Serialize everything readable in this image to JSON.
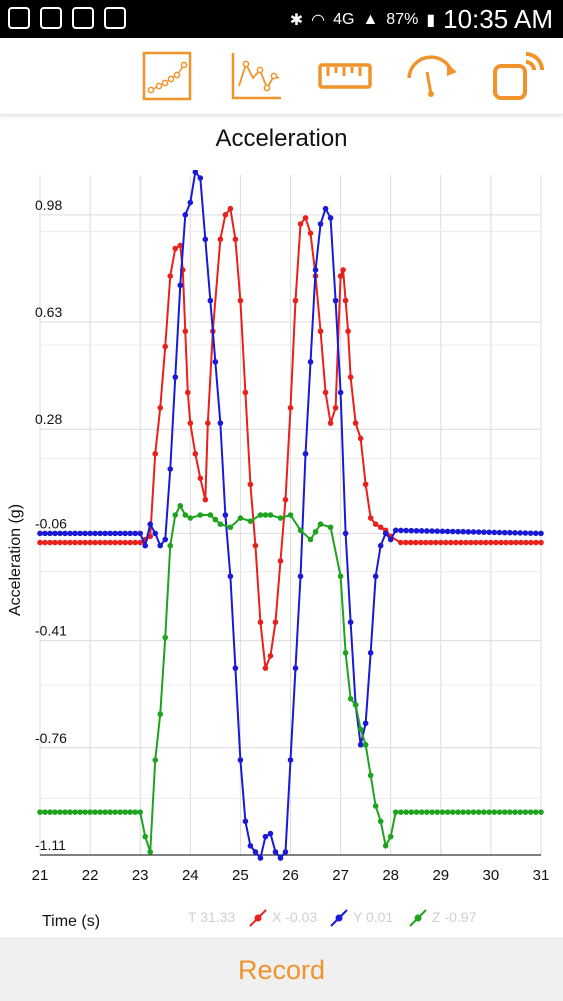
{
  "status_bar": {
    "battery_percent": "87%",
    "network": "4G",
    "clock": "10:35 AM",
    "icons": [
      "gallery-icon",
      "message-icon",
      "voicemail-icon",
      "clipboard-icon",
      "bluetooth-icon",
      "wifi-icon",
      "signal-icon",
      "battery-icon"
    ]
  },
  "toolbar": {
    "buttons": [
      {
        "name": "scatter-chart-icon"
      },
      {
        "name": "line-chart-icon"
      },
      {
        "name": "ruler-icon"
      },
      {
        "name": "gauge-icon"
      },
      {
        "name": "rotate-device-icon"
      }
    ],
    "accent_color": "#f0932b"
  },
  "title": "Acceleration",
  "chart_data": {
    "type": "line",
    "title": "Acceleration",
    "xlabel": "Time (s)",
    "ylabel": "Acceleration (g)",
    "xlim": [
      21,
      31
    ],
    "ylim": [
      -1.11,
      1.11
    ],
    "x_ticks": [
      "21",
      "22",
      "23",
      "24",
      "25",
      "26",
      "27",
      "28",
      "29",
      "30",
      "31"
    ],
    "y_ticks": [
      "0.98",
      "0.63",
      "0.28",
      "-0.06",
      "-0.41",
      "-0.76",
      "-1.11"
    ],
    "y_tick_values": [
      0.98,
      0.63,
      0.28,
      -0.06,
      -0.41,
      -0.76,
      -1.11
    ],
    "grid": true,
    "legend_placement": "bottom",
    "series": [
      {
        "name": "X",
        "color": "#e8211c",
        "points": [
          [
            21.0,
            -0.09
          ],
          [
            23.0,
            -0.09
          ],
          [
            23.1,
            -0.08
          ],
          [
            23.2,
            -0.07
          ],
          [
            23.3,
            0.2
          ],
          [
            23.4,
            0.35
          ],
          [
            23.5,
            0.55
          ],
          [
            23.6,
            0.78
          ],
          [
            23.7,
            0.87
          ],
          [
            23.8,
            0.88
          ],
          [
            23.85,
            0.8
          ],
          [
            23.9,
            0.6
          ],
          [
            23.95,
            0.4
          ],
          [
            24.0,
            0.3
          ],
          [
            24.1,
            0.2
          ],
          [
            24.2,
            0.12
          ],
          [
            24.3,
            0.05
          ],
          [
            24.35,
            0.3
          ],
          [
            24.45,
            0.6
          ],
          [
            24.6,
            0.9
          ],
          [
            24.7,
            0.98
          ],
          [
            24.8,
            1.0
          ],
          [
            24.9,
            0.9
          ],
          [
            25.0,
            0.7
          ],
          [
            25.1,
            0.4
          ],
          [
            25.2,
            0.1
          ],
          [
            25.3,
            -0.1
          ],
          [
            25.4,
            -0.35
          ],
          [
            25.5,
            -0.5
          ],
          [
            25.6,
            -0.46
          ],
          [
            25.7,
            -0.35
          ],
          [
            25.8,
            -0.15
          ],
          [
            25.9,
            0.05
          ],
          [
            26.0,
            0.35
          ],
          [
            26.1,
            0.7
          ],
          [
            26.2,
            0.95
          ],
          [
            26.3,
            0.97
          ],
          [
            26.4,
            0.92
          ],
          [
            26.5,
            0.78
          ],
          [
            26.6,
            0.6
          ],
          [
            26.7,
            0.4
          ],
          [
            26.8,
            0.3
          ],
          [
            26.9,
            0.35
          ],
          [
            27.0,
            0.78
          ],
          [
            27.05,
            0.8
          ],
          [
            27.1,
            0.7
          ],
          [
            27.15,
            0.6
          ],
          [
            27.2,
            0.45
          ],
          [
            27.3,
            0.3
          ],
          [
            27.4,
            0.25
          ],
          [
            27.5,
            0.1
          ],
          [
            27.6,
            -0.01
          ],
          [
            27.7,
            -0.03
          ],
          [
            27.8,
            -0.04
          ],
          [
            27.9,
            -0.05
          ],
          [
            28.0,
            -0.07
          ],
          [
            28.2,
            -0.09
          ],
          [
            31.0,
            -0.09
          ]
        ]
      },
      {
        "name": "Y",
        "color": "#1a1ad6",
        "points": [
          [
            21.0,
            -0.06
          ],
          [
            23.0,
            -0.06
          ],
          [
            23.1,
            -0.1
          ],
          [
            23.2,
            -0.03
          ],
          [
            23.3,
            -0.06
          ],
          [
            23.4,
            -0.1
          ],
          [
            23.5,
            -0.08
          ],
          [
            23.6,
            0.15
          ],
          [
            23.7,
            0.45
          ],
          [
            23.8,
            0.75
          ],
          [
            23.9,
            0.98
          ],
          [
            24.0,
            1.02
          ],
          [
            24.1,
            1.12
          ],
          [
            24.2,
            1.1
          ],
          [
            24.3,
            0.9
          ],
          [
            24.4,
            0.7
          ],
          [
            24.5,
            0.5
          ],
          [
            24.6,
            0.3
          ],
          [
            24.7,
            0.0
          ],
          [
            24.8,
            -0.2
          ],
          [
            24.9,
            -0.5
          ],
          [
            25.0,
            -0.8
          ],
          [
            25.1,
            -1.0
          ],
          [
            25.2,
            -1.08
          ],
          [
            25.3,
            -1.1
          ],
          [
            25.4,
            -1.12
          ],
          [
            25.5,
            -1.05
          ],
          [
            25.6,
            -1.04
          ],
          [
            25.7,
            -1.1
          ],
          [
            25.8,
            -1.12
          ],
          [
            25.9,
            -1.1
          ],
          [
            26.0,
            -0.8
          ],
          [
            26.1,
            -0.5
          ],
          [
            26.2,
            -0.2
          ],
          [
            26.3,
            0.2
          ],
          [
            26.4,
            0.5
          ],
          [
            26.5,
            0.8
          ],
          [
            26.6,
            0.95
          ],
          [
            26.7,
            1.0
          ],
          [
            26.8,
            0.97
          ],
          [
            26.9,
            0.7
          ],
          [
            27.0,
            0.4
          ],
          [
            27.1,
            -0.06
          ],
          [
            27.2,
            -0.35
          ],
          [
            27.3,
            -0.62
          ],
          [
            27.4,
            -0.75
          ],
          [
            27.5,
            -0.68
          ],
          [
            27.6,
            -0.45
          ],
          [
            27.7,
            -0.2
          ],
          [
            27.8,
            -0.1
          ],
          [
            27.9,
            -0.06
          ],
          [
            28.0,
            -0.08
          ],
          [
            28.1,
            -0.05
          ],
          [
            31.0,
            -0.06
          ]
        ]
      },
      {
        "name": "Z",
        "color": "#1ea31e",
        "points": [
          [
            21.0,
            -0.97
          ],
          [
            23.0,
            -0.97
          ],
          [
            23.1,
            -1.05
          ],
          [
            23.2,
            -1.1
          ],
          [
            23.3,
            -0.8
          ],
          [
            23.4,
            -0.65
          ],
          [
            23.5,
            -0.4
          ],
          [
            23.6,
            -0.1
          ],
          [
            23.7,
            0.0
          ],
          [
            23.8,
            0.03
          ],
          [
            23.9,
            0.0
          ],
          [
            24.0,
            -0.01
          ],
          [
            24.2,
            0.0
          ],
          [
            24.4,
            0.0
          ],
          [
            24.6,
            -0.03
          ],
          [
            24.8,
            -0.04
          ],
          [
            25.0,
            -0.01
          ],
          [
            25.2,
            -0.02
          ],
          [
            25.4,
            0.0
          ],
          [
            25.6,
            0.0
          ],
          [
            25.8,
            -0.01
          ],
          [
            26.0,
            0.0
          ],
          [
            26.2,
            -0.05
          ],
          [
            26.4,
            -0.08
          ],
          [
            26.6,
            -0.03
          ],
          [
            26.8,
            -0.04
          ],
          [
            27.0,
            -0.2
          ],
          [
            27.1,
            -0.45
          ],
          [
            27.2,
            -0.6
          ],
          [
            27.3,
            -0.62
          ],
          [
            27.4,
            -0.7
          ],
          [
            27.5,
            -0.75
          ],
          [
            27.6,
            -0.85
          ],
          [
            27.7,
            -0.95
          ],
          [
            27.8,
            -1.0
          ],
          [
            27.9,
            -1.08
          ],
          [
            28.0,
            -1.05
          ],
          [
            28.1,
            -0.97
          ],
          [
            31.0,
            -0.97
          ]
        ]
      }
    ],
    "legend": [
      {
        "label": "T 31.33",
        "color": "#cccccc"
      },
      {
        "label": "X -0.03",
        "color": "#e8211c"
      },
      {
        "label": "Y 0.01",
        "color": "#1a1ad6"
      },
      {
        "label": "Z -0.97",
        "color": "#1ea31e"
      }
    ]
  },
  "record_label": "Record"
}
